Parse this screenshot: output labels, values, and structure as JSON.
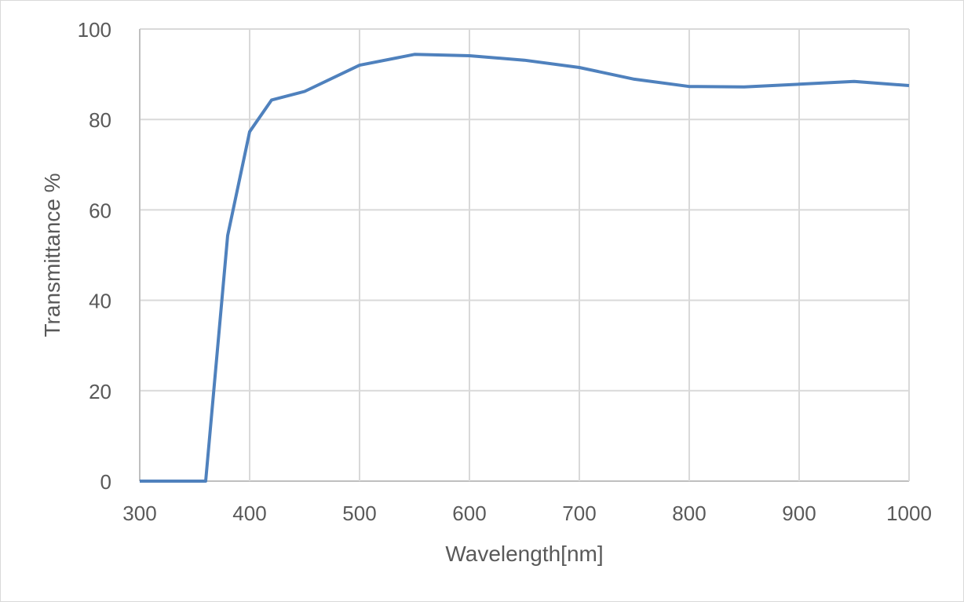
{
  "chart_data": {
    "type": "line",
    "title": "",
    "xlabel": "Wavelength[nm]",
    "ylabel": "Transmittance %",
    "xlim": [
      300,
      1000
    ],
    "ylim": [
      0,
      100
    ],
    "xticks": [
      300,
      400,
      500,
      600,
      700,
      800,
      900,
      1000
    ],
    "yticks": [
      0,
      20,
      40,
      60,
      80,
      100
    ],
    "grid": true,
    "legend": "none",
    "color": "#4f81bd",
    "series": [
      {
        "x": [
          300,
          360,
          380,
          400,
          420,
          450,
          500,
          550,
          600,
          650,
          700,
          750,
          800,
          850,
          900,
          950,
          1000
        ],
        "y": [
          0,
          0,
          54.3,
          77.3,
          84.3,
          86.2,
          92.0,
          94.4,
          94.1,
          93.1,
          91.5,
          88.9,
          87.3,
          87.2,
          87.8,
          88.4,
          87.5
        ]
      }
    ]
  }
}
